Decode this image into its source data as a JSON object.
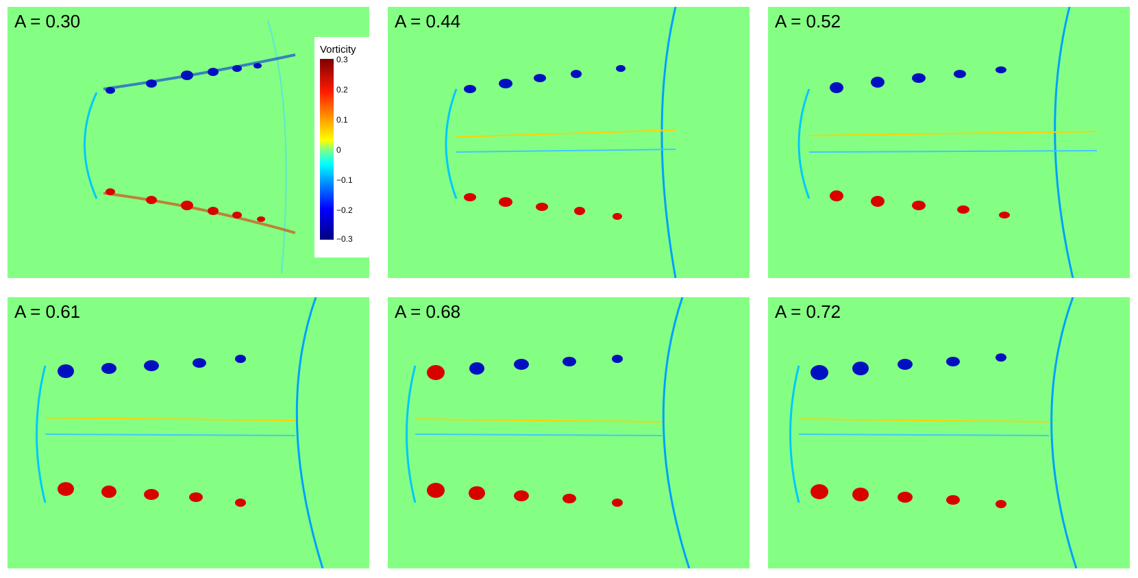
{
  "panels": [
    {
      "label": "A = 0.30"
    },
    {
      "label": "A = 0.44"
    },
    {
      "label": "A = 0.52"
    },
    {
      "label": "A = 0.61"
    },
    {
      "label": "A = 0.68"
    },
    {
      "label": "A = 0.72"
    }
  ],
  "colorbar": {
    "title": "Vorticity",
    "ticks": [
      "0.3",
      "0.2",
      "0.1",
      "0",
      "−0.1",
      "−0.2",
      "−0.3"
    ],
    "range": [
      -0.3,
      0.3
    ],
    "colormap": [
      "#00007f",
      "#0000ff",
      "#0080ff",
      "#00ffff",
      "#84ff84",
      "#ffff00",
      "#ff9a00",
      "#ff1a00",
      "#7f0000"
    ]
  },
  "colors": {
    "background_field": "#84ff84",
    "positive_vortex": "#d90000",
    "negative_vortex": "#0010c0"
  }
}
